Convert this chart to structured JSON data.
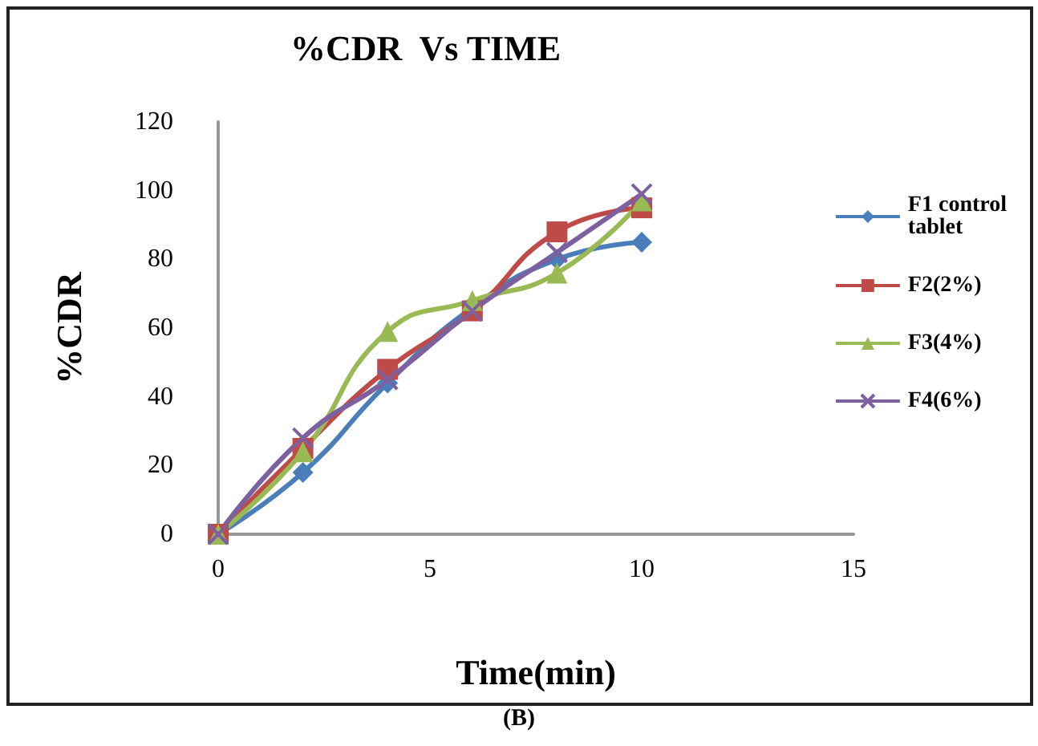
{
  "chart_data": {
    "type": "line",
    "title": "%CDR  Vs TIME",
    "xlabel": "Time(min)",
    "ylabel": "%CDR",
    "annotations": [
      "(B)"
    ],
    "x": [
      0,
      2,
      4,
      6,
      8,
      10
    ],
    "series": [
      {
        "name": "F1 control tablet",
        "color": "#4a7ebb",
        "marker": "diamond",
        "values": [
          0,
          18,
          44,
          66,
          80,
          85
        ]
      },
      {
        "name": "F2(2%)",
        "color": "#be4b48",
        "marker": "square",
        "values": [
          0,
          25,
          48,
          65,
          88,
          95
        ]
      },
      {
        "name": "F3(4%)",
        "color": "#98b954",
        "marker": "triangle",
        "values": [
          0,
          24,
          59,
          68,
          76,
          97
        ]
      },
      {
        "name": "F4(6%)",
        "color": "#7d60a0",
        "marker": "cross",
        "values": [
          0,
          28,
          45,
          65,
          82,
          99
        ]
      }
    ],
    "xlim": [
      0,
      15
    ],
    "xticks": [
      0,
      5,
      10,
      15
    ],
    "ylim": [
      0,
      120
    ],
    "yticks": [
      0,
      20,
      40,
      60,
      80,
      100,
      120
    ],
    "grid": false,
    "legend": "right"
  }
}
